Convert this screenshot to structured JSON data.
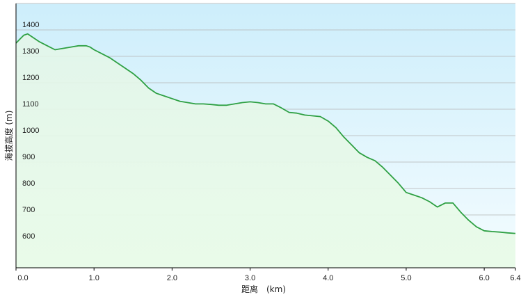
{
  "chart_data": {
    "type": "area",
    "xlabel": "距离　(km)",
    "ylabel": "海拔高度 (m)",
    "x_ticks": [
      "0.0",
      "1.0",
      "2.0",
      "3.0",
      "4.0",
      "5.0",
      "6.0",
      "6.4"
    ],
    "x_tick_values": [
      0,
      1,
      2,
      3,
      4,
      5,
      6,
      6.4
    ],
    "y_ticks": [
      "600",
      "700",
      "800",
      "900",
      "1000",
      "1100",
      "1200",
      "1300",
      "1400"
    ],
    "y_tick_values": [
      600,
      700,
      800,
      900,
      1000,
      1100,
      1200,
      1300,
      1400
    ],
    "xlim": [
      0,
      6.4
    ],
    "ylim": [
      500,
      1500
    ],
    "grid": "horizontal",
    "colors": {
      "line": "#2ea043",
      "fill_bottom": "#e9fbe9",
      "background_top": "#cdeefb",
      "background_bottom": "#f4fcff",
      "gridline": "#b5b5b5",
      "axis": "#000000"
    },
    "series": [
      {
        "x": [
          0,
          0.05,
          0.1,
          0.15,
          0.2,
          0.3,
          0.4,
          0.5,
          0.6,
          0.7,
          0.8,
          0.9,
          0.95,
          1.0,
          1.1,
          1.2,
          1.3,
          1.4,
          1.5,
          1.6,
          1.7,
          1.8,
          1.9,
          2.0,
          2.1,
          2.2,
          2.3,
          2.4,
          2.5,
          2.6,
          2.7,
          2.8,
          2.9,
          3.0,
          3.1,
          3.2,
          3.3,
          3.4,
          3.5,
          3.6,
          3.7,
          3.8,
          3.9,
          4.0,
          4.1,
          4.2,
          4.3,
          4.4,
          4.5,
          4.6,
          4.7,
          4.8,
          4.9,
          5.0,
          5.1,
          5.2,
          5.3,
          5.4,
          5.5,
          5.6,
          5.7,
          5.8,
          5.9,
          6.0,
          6.1,
          6.2,
          6.3,
          6.4
        ],
        "values": [
          1350,
          1365,
          1380,
          1385,
          1375,
          1355,
          1340,
          1325,
          1330,
          1335,
          1340,
          1340,
          1335,
          1325,
          1310,
          1295,
          1275,
          1255,
          1235,
          1210,
          1180,
          1160,
          1150,
          1140,
          1130,
          1125,
          1120,
          1120,
          1118,
          1115,
          1115,
          1120,
          1125,
          1128,
          1125,
          1120,
          1120,
          1105,
          1088,
          1085,
          1078,
          1075,
          1072,
          1055,
          1030,
          995,
          965,
          935,
          918,
          905,
          880,
          850,
          820,
          785,
          775,
          765,
          750,
          730,
          745,
          745,
          710,
          680,
          655,
          640,
          637,
          635,
          632,
          630
        ]
      }
    ]
  }
}
